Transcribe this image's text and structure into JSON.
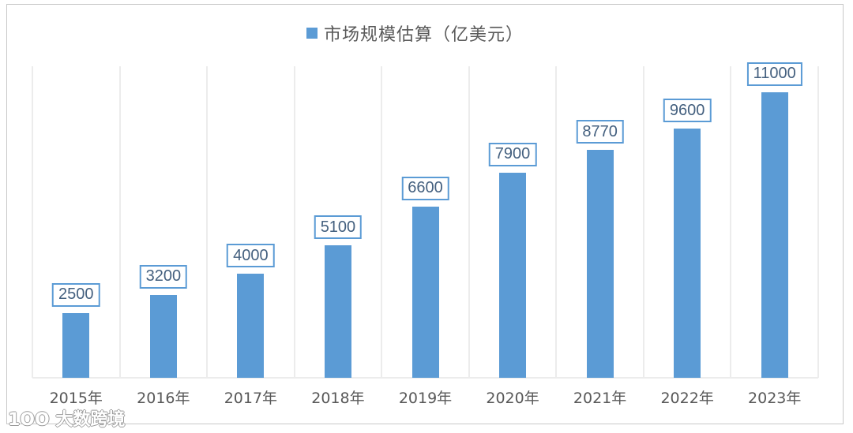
{
  "chart_data": {
    "type": "bar",
    "title": "",
    "legend": [
      "市场规模估算（亿美元）"
    ],
    "legend_position": "top",
    "categories": [
      "2015年",
      "2016年",
      "2017年",
      "2018年",
      "2019年",
      "2020年",
      "2021年",
      "2022年",
      "2023年"
    ],
    "series": [
      {
        "name": "市场规模估算（亿美元）",
        "values": [
          2500,
          3200,
          4000,
          5100,
          6600,
          7900,
          8770,
          9600,
          11000
        ],
        "color": "#5b9bd5"
      }
    ],
    "xlabel": "",
    "ylabel": "",
    "ylim": [
      0,
      12000
    ],
    "grid": "vertical",
    "data_labels": true
  },
  "colors": {
    "bar": "#5b9bd5",
    "label_border": "#5b9bd5",
    "label_text": "#44607f"
  },
  "watermark": "1OO 大数跨境"
}
